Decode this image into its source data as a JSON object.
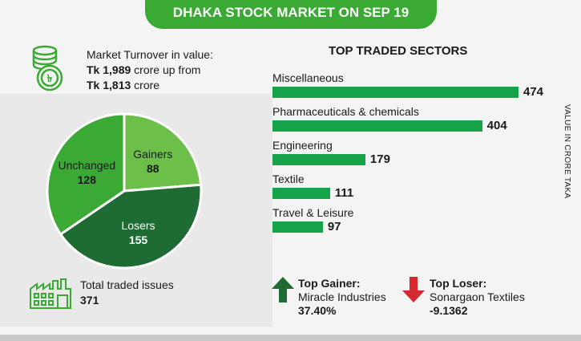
{
  "header": {
    "title": "DHAKA STOCK MARKET ON SEP 19"
  },
  "turnover": {
    "line1": "Market Turnover in value:",
    "value_bold": "Tk 1,989",
    "line2_rest": " crore up from",
    "prev_bold": "Tk 1,813",
    "line3_rest": " crore"
  },
  "issues": {
    "label": "Total traded issues",
    "value": "371"
  },
  "sectors": {
    "title": "TOP TRADED SECTORS",
    "unit": "VALUE IN CRORE TAKA"
  },
  "top_gainer": {
    "title": "Top Gainer:",
    "name": "Miracle Industries",
    "value": "37.40%"
  },
  "top_loser": {
    "title": "Top Loser:",
    "name": "Sonargaon Textiles",
    "value": "-9.1362"
  },
  "colors": {
    "header": "#3aaa35",
    "gainers": "#6cc04a",
    "losers": "#1e6b33",
    "unchanged": "#3aaa35",
    "bar": "#17a34a",
    "up_arrow": "#1e6b33",
    "down_arrow": "#d6282e"
  },
  "chart_data": [
    {
      "type": "pie",
      "categories": [
        "Gainers",
        "Losers",
        "Unchanged"
      ],
      "values": [
        88,
        155,
        128
      ]
    },
    {
      "type": "bar",
      "orientation": "horizontal",
      "title": "TOP TRADED SECTORS",
      "ylabel": "VALUE IN CRORE TAKA",
      "categories": [
        "Miscellaneous",
        "Pharmaceuticals & chemicals",
        "Engineering",
        "Textile",
        "Travel & Leisure"
      ],
      "values": [
        474,
        404,
        179,
        111,
        97
      ]
    }
  ]
}
